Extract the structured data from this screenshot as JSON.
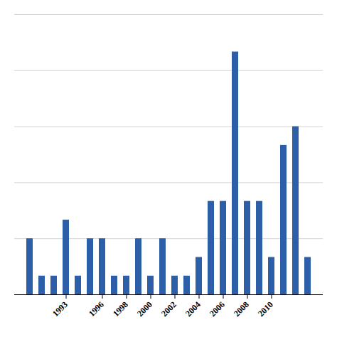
{
  "chart_data": {
    "type": "bar",
    "categories": [
      null,
      null,
      null,
      "1993",
      null,
      null,
      "1996",
      null,
      "1998",
      null,
      "2000",
      null,
      "2002",
      null,
      "2004",
      null,
      "2006",
      null,
      "2008",
      null,
      "2010",
      null,
      null,
      null
    ],
    "values": [
      3,
      1,
      1,
      4,
      1,
      3,
      3,
      1,
      1,
      3,
      1,
      3,
      1,
      1,
      2,
      5,
      5,
      13,
      5,
      5,
      2,
      8,
      9,
      2
    ],
    "color": "#2d5fa8",
    "ylim": [
      0,
      15
    ],
    "yticks": [
      0,
      3,
      6,
      9,
      12,
      15
    ],
    "grid": true,
    "tick_labels": "x"
  }
}
